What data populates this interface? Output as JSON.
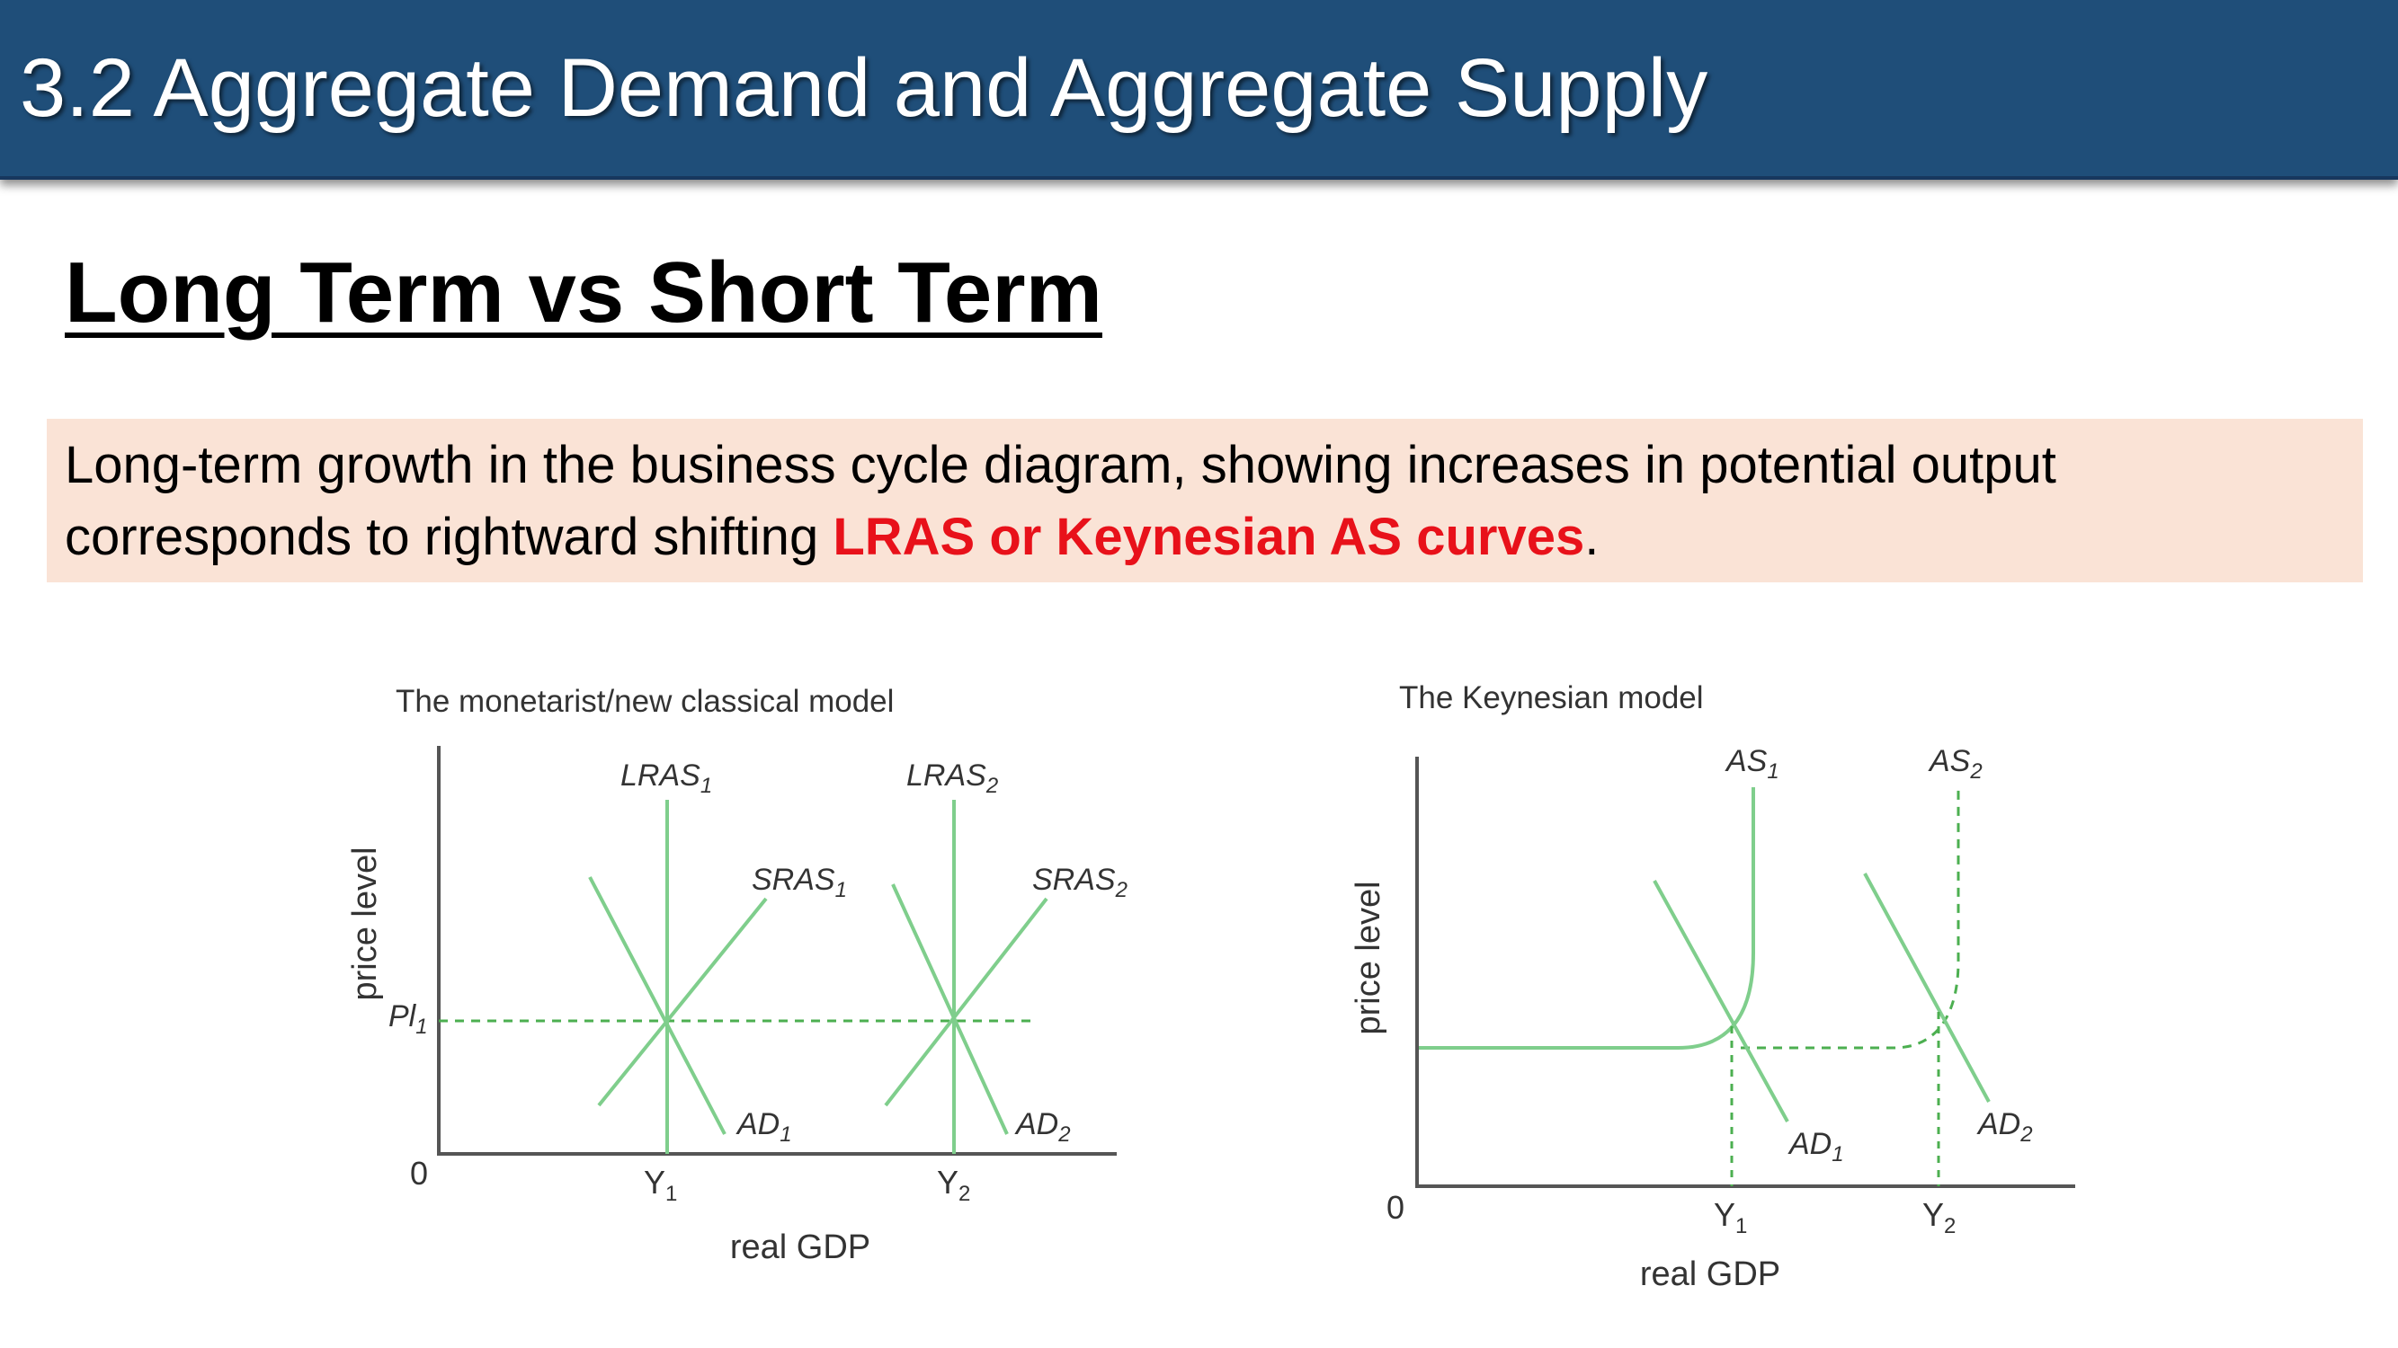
{
  "header": {
    "title": "3.2 Aggregate Demand and Aggregate Supply"
  },
  "slide": {
    "subtitle": "Long Term vs Short Term",
    "callout": {
      "text_before": "Long-term growth in the business cycle diagram, showing increases in potential output corresponds to rightward shifting ",
      "highlight": "LRAS or Keynesian AS curves",
      "text_after": "."
    }
  },
  "colors": {
    "header_bg": "#1f4e79",
    "callout_bg": "#fae3d6",
    "highlight": "#e8111a",
    "curve": "#7fce8c",
    "dashed": "#4caf50",
    "axis": "#555555"
  },
  "diagrams": {
    "monetarist": {
      "title": "The monetarist/new classical model",
      "ylabel": "price level",
      "xlabel": "real GDP",
      "origin": "0",
      "pl1": "Pl",
      "pl1_sub": "1",
      "y1": "Y",
      "y1_sub": "1",
      "y2": "Y",
      "y2_sub": "2",
      "lras1": "LRAS",
      "lras1_sub": "1",
      "lras2": "LRAS",
      "lras2_sub": "2",
      "sras1": "SRAS",
      "sras1_sub": "1",
      "sras2": "SRAS",
      "sras2_sub": "2",
      "ad1": "AD",
      "ad1_sub": "1",
      "ad2": "AD",
      "ad2_sub": "2"
    },
    "keynesian": {
      "title": "The Keynesian model",
      "ylabel": "price level",
      "xlabel": "real GDP",
      "origin": "0",
      "y1": "Y",
      "y1_sub": "1",
      "y2": "Y",
      "y2_sub": "2",
      "as1": "AS",
      "as1_sub": "1",
      "as2": "AS",
      "as2_sub": "2",
      "ad1": "AD",
      "ad1_sub": "1",
      "ad2": "AD",
      "ad2_sub": "2"
    }
  }
}
